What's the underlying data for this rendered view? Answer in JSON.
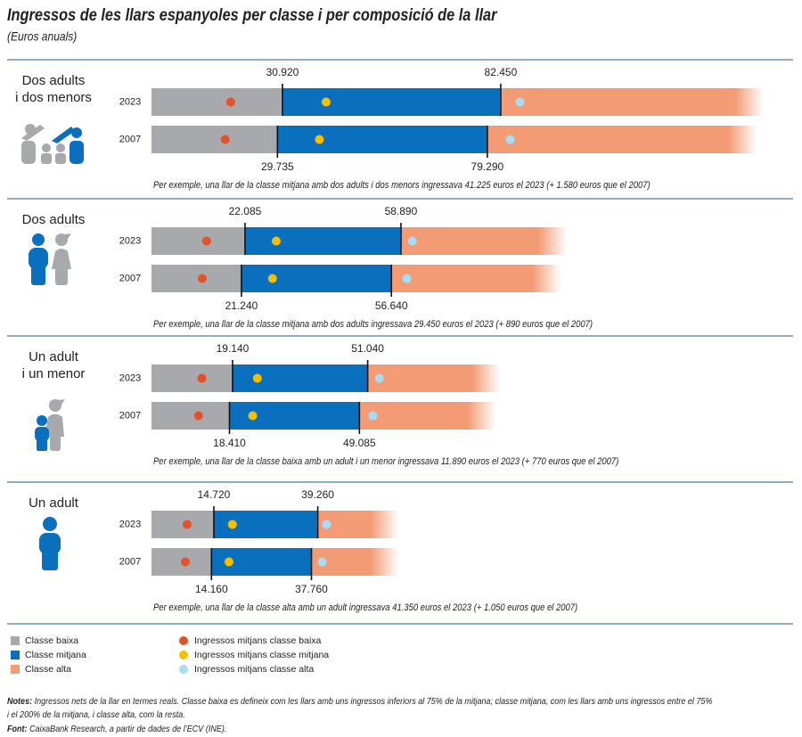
{
  "chart_data": {
    "type": "bar",
    "title": "Ingressos de les llars espanyoles per classe i per composició de la llar",
    "subtitle": "(Euros anuals)",
    "xlim": [
      0,
      150000
    ],
    "series": [
      {
        "name": "Classe baixa",
        "color": "#a7a9ac"
      },
      {
        "name": "Classe mitjana",
        "color": "#0a6fbd"
      },
      {
        "name": "Classe alta",
        "color": "#f39b74"
      }
    ],
    "mean_series": [
      {
        "name": "Ingressos mitjans classe baixa",
        "color": "#e2522b"
      },
      {
        "name": "Ingressos mitjans classe mitjana",
        "color": "#f5c000"
      },
      {
        "name": "Ingressos mitjans classe alta",
        "color": "#a9dcf2"
      }
    ],
    "panels": [
      {
        "label_lines": [
          "Dos adults",
          "i dos menors"
        ],
        "rows": [
          {
            "year": "2023",
            "thresholds": [
              30920,
              82450
            ],
            "threshold_labels": [
              "30.920",
              "82.450"
            ],
            "end": 144500,
            "means": [
              18700,
              41225,
              87000
            ]
          },
          {
            "year": "2007",
            "thresholds": [
              29735,
              79290
            ],
            "threshold_labels": [
              "29.735",
              "79.290"
            ],
            "end": 142900,
            "means": [
              17400,
              39645,
              84700
            ]
          }
        ],
        "note": "Per exemple, una llar de la classe mitjana amb dos adults i dos menors ingressava 41.225 euros el 2023 (+ 1.580 euros que el 2007)"
      },
      {
        "label_lines": [
          "Dos adults"
        ],
        "rows": [
          {
            "year": "2023",
            "thresholds": [
              22085,
              58890
            ],
            "threshold_labels": [
              "22.085",
              "58.890"
            ],
            "end": 98100,
            "means": [
              13000,
              29450,
              61600
            ]
          },
          {
            "year": "2007",
            "thresholds": [
              21240,
              56640
            ],
            "threshold_labels": [
              "21.240",
              "56.640"
            ],
            "end": 96600,
            "means": [
              12000,
              28560,
              60300
            ]
          }
        ],
        "note": "Per exemple, una llar de la classe mitjana amb dos adults ingressava 29.450 euros el 2023 (+ 890 euros que el 2007)"
      },
      {
        "label_lines": [
          "Un adult",
          "i un menor"
        ],
        "rows": [
          {
            "year": "2023",
            "thresholds": [
              19140,
              51040
            ],
            "threshold_labels": [
              "19.140",
              "51.040"
            ],
            "end": 82350,
            "means": [
              11890,
              25000,
              53800
            ]
          },
          {
            "year": "2007",
            "thresholds": [
              18410,
              49085
            ],
            "threshold_labels": [
              "18.410",
              "49.085"
            ],
            "end": 81300,
            "means": [
              11120,
              23900,
              52300
            ]
          }
        ],
        "note": "Per exemple, una llar de la classe baixa amb un adult i un menor ingressava 11.890 euros el 2023 (+ 770 euros que el 2007)"
      },
      {
        "label_lines": [
          "Un adult"
        ],
        "rows": [
          {
            "year": "2023",
            "thresholds": [
              14720,
              39260
            ],
            "threshold_labels": [
              "14.720",
              "39.260"
            ],
            "end": 58400,
            "means": [
              8400,
              19100,
              41350
            ]
          },
          {
            "year": "2007",
            "thresholds": [
              14160,
              37760
            ],
            "threshold_labels": [
              "14.160",
              "37.760"
            ],
            "end": 58400,
            "means": [
              8000,
              18300,
              40300
            ]
          }
        ],
        "note": "Per exemple, una llar de la classe alta amb un adult ingressava 41.350 euros el 2023 (+ 1.050 euros que el 2007)"
      }
    ],
    "notes_label": "Notes:",
    "notes_lines": [
      "Ingressos nets de la llar en termes reals. Classe baixa es defineix com les llars amb uns ingressos inferiors al 75% de la mitjana; classe mitjana, com les llars amb uns ingressos entre el 75%",
      "i el 200% de la mitjana, i classe alta, com la resta."
    ],
    "source_label": "Font:",
    "source": "CaixaBank Research, a partir de dades de l’ECV (INE)."
  }
}
